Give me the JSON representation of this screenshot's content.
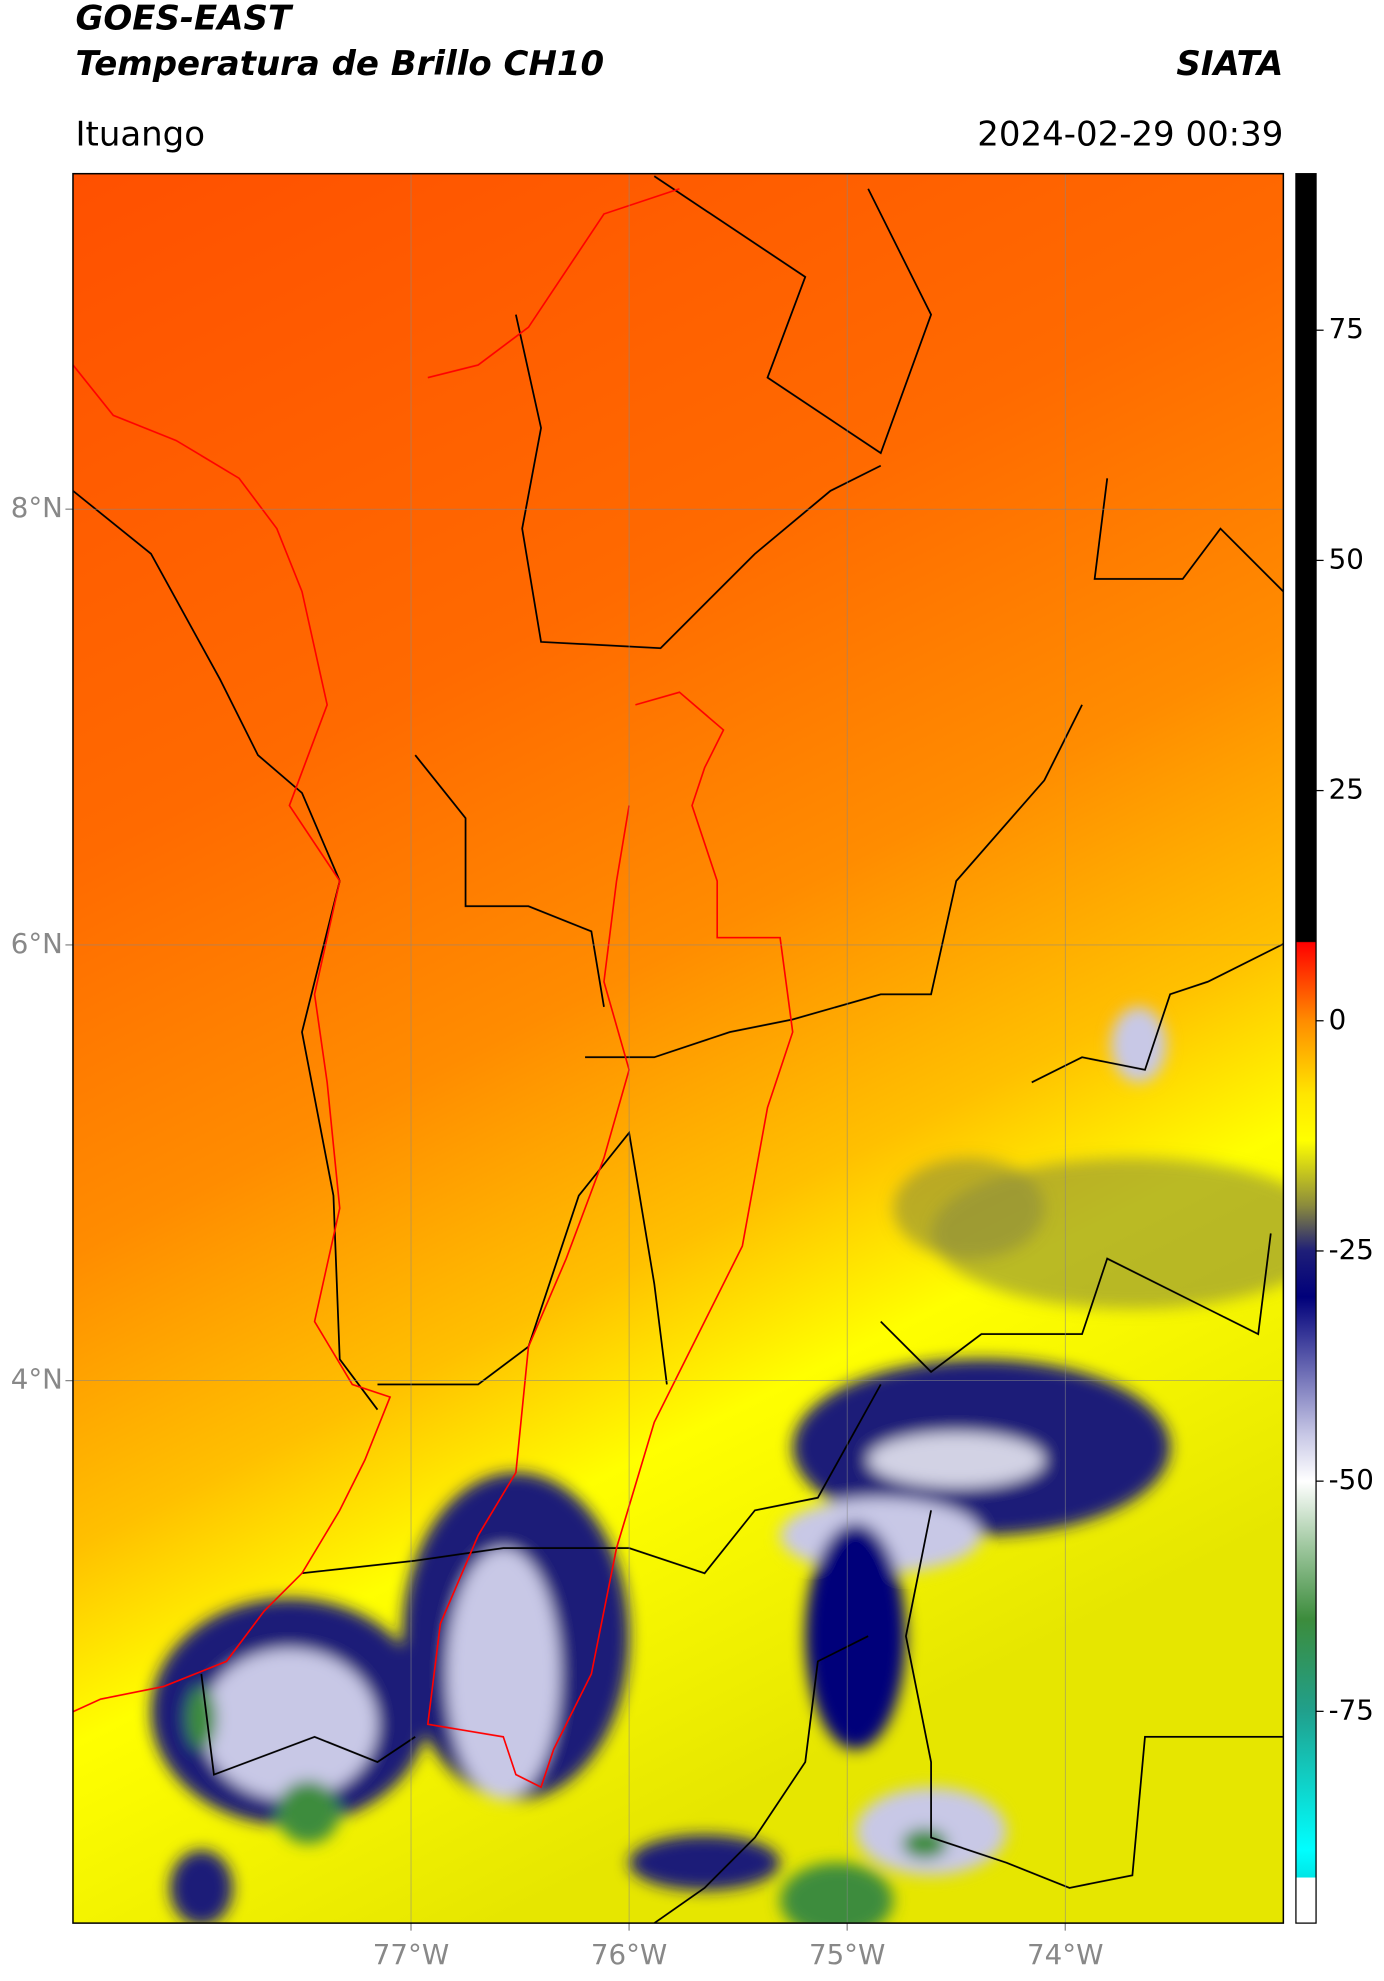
{
  "header": {
    "title": "GOES-EAST",
    "subtitle": "Temperatura de Brillo CH10",
    "source": "SIATA",
    "location": "Ituango",
    "datetime": "2024-02-29 00:39"
  },
  "map": {
    "xlim": [
      -78.55,
      -73.0
    ],
    "ylim": [
      1.51,
      9.54
    ],
    "xticks": [
      {
        "value": -77,
        "label": "77°W"
      },
      {
        "value": -76,
        "label": "76°W"
      },
      {
        "value": -75,
        "label": "75°W"
      },
      {
        "value": -74,
        "label": "74°W"
      }
    ],
    "yticks": [
      {
        "value": 8,
        "label": "8°N"
      },
      {
        "value": 6,
        "label": "6°N"
      },
      {
        "value": 4,
        "label": "4°N"
      }
    ],
    "grid": true
  },
  "colorbar": {
    "clim": [
      -98,
      92
    ],
    "ticks": [
      75,
      50,
      25,
      0,
      -25,
      -50,
      -75
    ],
    "colormap": [
      {
        "value": 92,
        "color": "#000000"
      },
      {
        "value": 8.6,
        "color": "#000000"
      },
      {
        "value": 8.5,
        "color": "#ff0000"
      },
      {
        "value": 0,
        "color": "#ff8c00"
      },
      {
        "value": -8,
        "color": "#ffe600"
      },
      {
        "value": -13,
        "color": "#ffff00"
      },
      {
        "value": -20,
        "color": "#8c8c3c"
      },
      {
        "value": -25,
        "color": "#1e1e78"
      },
      {
        "value": -30,
        "color": "#00007a"
      },
      {
        "value": -45,
        "color": "#c8c8e6"
      },
      {
        "value": -50,
        "color": "#ffffff"
      },
      {
        "value": -57,
        "color": "#a0c8a0"
      },
      {
        "value": -65,
        "color": "#3c8c3c"
      },
      {
        "value": -75,
        "color": "#20a08c"
      },
      {
        "value": -90,
        "color": "#00ffff"
      },
      {
        "value": -93,
        "color": "#00e6e6"
      },
      {
        "value": -93.1,
        "color": "#ffffff"
      },
      {
        "value": -98,
        "color": "#ffffff"
      }
    ]
  }
}
